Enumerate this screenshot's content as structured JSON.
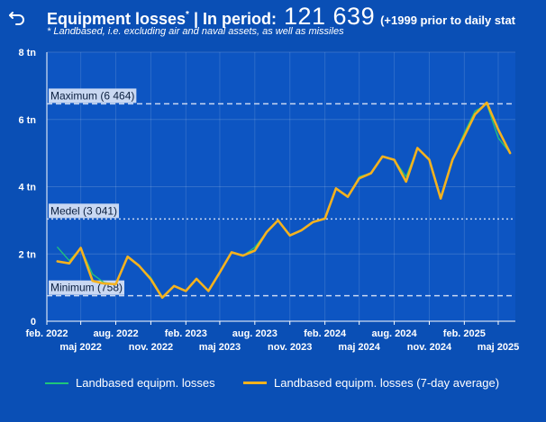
{
  "header": {
    "title": "Equipment losses",
    "title_mark": "*",
    "title_suffix": " | In period:",
    "total": "121 639",
    "prior_note": "(+1999 prior to daily stat",
    "subtitle": "* Landbased, i.e. excluding air and naval assets, as well as missiles",
    "back_icon": "undo-arrow-icon"
  },
  "colors": {
    "background": "#0a4fb5",
    "plot_background": "#0d55c2",
    "daily_line": "#1fc67a",
    "avg_line": "#f5b21e",
    "reference_line": "#c9d8f2"
  },
  "chart_data": {
    "type": "line",
    "title": "",
    "xlabel": "",
    "ylabel": "",
    "x_dates": [
      "2022-02-01",
      "2025-06-15"
    ],
    "ylim": [
      0,
      8000
    ],
    "y_ticks": [
      {
        "value": 0,
        "label": "0"
      },
      {
        "value": 2000,
        "label": "2 tn"
      },
      {
        "value": 4000,
        "label": "4 tn"
      },
      {
        "value": 6000,
        "label": "6 tn"
      },
      {
        "value": 8000,
        "label": "8 tn"
      }
    ],
    "x_ticks": [
      {
        "date": "2022-02-01",
        "label": "feb. 2022",
        "row": 1
      },
      {
        "date": "2022-05-01",
        "label": "maj 2022",
        "row": 2
      },
      {
        "date": "2022-08-01",
        "label": "aug. 2022",
        "row": 1
      },
      {
        "date": "2022-11-01",
        "label": "nov. 2022",
        "row": 2
      },
      {
        "date": "2023-02-01",
        "label": "feb. 2023",
        "row": 1
      },
      {
        "date": "2023-05-01",
        "label": "maj 2023",
        "row": 2
      },
      {
        "date": "2023-08-01",
        "label": "aug. 2023",
        "row": 1
      },
      {
        "date": "2023-11-01",
        "label": "nov. 2023",
        "row": 2
      },
      {
        "date": "2024-02-01",
        "label": "feb. 2024",
        "row": 1
      },
      {
        "date": "2024-05-01",
        "label": "maj 2024",
        "row": 2
      },
      {
        "date": "2024-08-01",
        "label": "aug. 2024",
        "row": 1
      },
      {
        "date": "2024-11-01",
        "label": "nov. 2024",
        "row": 2
      },
      {
        "date": "2025-02-01",
        "label": "feb. 2025",
        "row": 1
      },
      {
        "date": "2025-05-01",
        "label": "maj 2025",
        "row": 2
      }
    ],
    "grid": true,
    "legend_position": "bottom",
    "reference_lines": [
      {
        "name": "maximum",
        "label": "Maximum (6 464)",
        "value": 6464,
        "style": "dashed"
      },
      {
        "name": "median",
        "label": "Medel (3 041)",
        "value": 3041,
        "style": "dotted"
      },
      {
        "name": "minimum",
        "label": "Minimum (758)",
        "value": 758,
        "style": "dashed"
      }
    ],
    "series": [
      {
        "name": "Landbased equipm. losses",
        "color": "#1fc67a",
        "width": 1.3,
        "points": [
          [
            "2022-03-01",
            2200
          ],
          [
            "2022-04-01",
            1800
          ],
          [
            "2022-05-01",
            2180
          ],
          [
            "2022-06-01",
            1400
          ],
          [
            "2022-07-01",
            1150
          ],
          [
            "2022-08-01",
            1100
          ],
          [
            "2022-09-01",
            1900
          ],
          [
            "2022-10-01",
            1650
          ],
          [
            "2022-11-01",
            1300
          ],
          [
            "2022-12-01",
            720
          ],
          [
            "2023-01-01",
            1050
          ],
          [
            "2023-02-01",
            900
          ],
          [
            "2023-03-01",
            1250
          ],
          [
            "2023-04-01",
            900
          ],
          [
            "2023-05-01",
            1450
          ],
          [
            "2023-06-01",
            2050
          ],
          [
            "2023-07-01",
            1950
          ],
          [
            "2023-08-01",
            2200
          ],
          [
            "2023-09-01",
            2650
          ],
          [
            "2023-10-01",
            3000
          ],
          [
            "2023-11-01",
            2550
          ],
          [
            "2023-12-01",
            2700
          ],
          [
            "2024-01-01",
            2950
          ],
          [
            "2024-02-01",
            3050
          ],
          [
            "2024-03-01",
            3950
          ],
          [
            "2024-04-01",
            3700
          ],
          [
            "2024-05-01",
            4300
          ],
          [
            "2024-06-01",
            4400
          ],
          [
            "2024-07-01",
            4900
          ],
          [
            "2024-08-01",
            4800
          ],
          [
            "2024-09-01",
            4300
          ],
          [
            "2024-10-01",
            5150
          ],
          [
            "2024-11-01",
            4800
          ],
          [
            "2024-12-01",
            3700
          ],
          [
            "2025-01-01",
            4800
          ],
          [
            "2025-02-01",
            5600
          ],
          [
            "2025-03-01",
            6250
          ],
          [
            "2025-04-01",
            6450
          ],
          [
            "2025-05-01",
            5450
          ],
          [
            "2025-06-01",
            5000
          ]
        ]
      },
      {
        "name": "Landbased equipm. losses (7-day average)",
        "color": "#f5b21e",
        "width": 2.6,
        "points": [
          [
            "2022-03-01",
            1780
          ],
          [
            "2022-04-01",
            1720
          ],
          [
            "2022-05-01",
            2180
          ],
          [
            "2022-06-01",
            1200
          ],
          [
            "2022-07-01",
            1120
          ],
          [
            "2022-08-01",
            1100
          ],
          [
            "2022-09-01",
            1920
          ],
          [
            "2022-10-01",
            1650
          ],
          [
            "2022-11-01",
            1250
          ],
          [
            "2022-12-01",
            700
          ],
          [
            "2023-01-01",
            1050
          ],
          [
            "2023-02-01",
            900
          ],
          [
            "2023-03-01",
            1260
          ],
          [
            "2023-04-01",
            900
          ],
          [
            "2023-05-01",
            1450
          ],
          [
            "2023-06-01",
            2050
          ],
          [
            "2023-07-01",
            1950
          ],
          [
            "2023-08-01",
            2100
          ],
          [
            "2023-09-01",
            2650
          ],
          [
            "2023-10-01",
            3000
          ],
          [
            "2023-11-01",
            2550
          ],
          [
            "2023-12-01",
            2700
          ],
          [
            "2024-01-01",
            2950
          ],
          [
            "2024-02-01",
            3050
          ],
          [
            "2024-03-01",
            3950
          ],
          [
            "2024-04-01",
            3700
          ],
          [
            "2024-05-01",
            4250
          ],
          [
            "2024-06-01",
            4400
          ],
          [
            "2024-07-01",
            4900
          ],
          [
            "2024-08-01",
            4800
          ],
          [
            "2024-09-01",
            4150
          ],
          [
            "2024-10-01",
            5150
          ],
          [
            "2024-11-01",
            4800
          ],
          [
            "2024-12-01",
            3650
          ],
          [
            "2025-01-01",
            4800
          ],
          [
            "2025-02-01",
            5500
          ],
          [
            "2025-03-01",
            6150
          ],
          [
            "2025-04-01",
            6500
          ],
          [
            "2025-05-01",
            5700
          ],
          [
            "2025-06-01",
            5000
          ]
        ]
      }
    ]
  }
}
